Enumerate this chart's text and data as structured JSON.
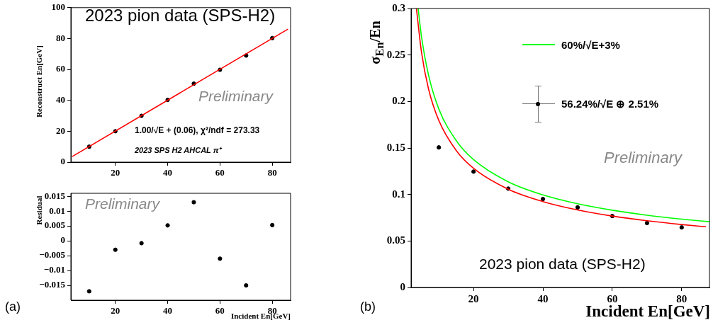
{
  "chart_data": [
    {
      "type": "scatter",
      "ylabel": "Reconstruct En[GeV]",
      "xlim": [
        3,
        87
      ],
      "xticks": [
        20,
        40,
        60,
        80
      ],
      "ylim": [
        0,
        100
      ],
      "yticks": [
        0,
        20,
        40,
        60,
        80,
        100
      ],
      "grid": false,
      "annotations": [
        "2023 pion data (SPS-H2)",
        "Preliminary",
        "1.00/√E + (0.06), χ²/ndf = 273.33",
        "2023 SPS H2 AHCAL π⁺"
      ],
      "series": [
        {
          "type": "line",
          "color": "#ff0000",
          "x": [
            3.5,
            86
          ],
          "values": [
            3.6,
            86.1
          ]
        },
        {
          "marker": "circle",
          "color": "#000000",
          "x": [
            10,
            20,
            30,
            40,
            50,
            60,
            70,
            80
          ],
          "values": [
            10,
            20,
            30,
            40.3,
            50.8,
            59.8,
            69,
            80.3
          ]
        }
      ]
    },
    {
      "type": "scatter",
      "ylabel": "Residual",
      "xlabel": "Incident En[GeV]",
      "xlim": [
        3,
        87
      ],
      "xticks": [
        20,
        40,
        60,
        80
      ],
      "ylim": [
        -0.02,
        0.016
      ],
      "yticks": [
        {
          "value": -0.015,
          "label": "−0.015"
        },
        {
          "value": -0.01,
          "label": "−0.01"
        },
        {
          "value": -0.005,
          "label": "−0.005"
        },
        0,
        0.005,
        0.01,
        0.015
      ],
      "grid": false,
      "marker": "circle",
      "annotations": [
        "Preliminary",
        "(a)"
      ],
      "series": [
        {
          "color": "#000000",
          "x": [
            10,
            20,
            30,
            40,
            50,
            60,
            70,
            80
          ],
          "values": [
            -0.017,
            -0.003,
            -0.0008,
            0.0052,
            0.013,
            -0.006,
            -0.015,
            0.0053
          ]
        }
      ]
    },
    {
      "type": "scatter",
      "ylabel": "σ$_{En}$/En",
      "xlabel": "Incident En[GeV]",
      "xlim": [
        2,
        88
      ],
      "xticks": [
        20,
        40,
        60,
        80
      ],
      "ylim": [
        0,
        0.3
      ],
      "yticks": [
        0,
        0.05,
        0.1,
        0.15,
        0.2,
        0.25,
        0.3
      ],
      "grid": false,
      "legend": "top right",
      "annotations": [
        "Preliminary",
        "2023 pion data (SPS-H2)",
        "(b)"
      ],
      "series": [
        {
          "type": "line",
          "name": "60%/√E+3%",
          "color": "#00ff00",
          "x": [
            4.04,
            5,
            7,
            10,
            15,
            20,
            30,
            40,
            50,
            60,
            70,
            80,
            88
          ],
          "values": [
            0.3,
            0.27,
            0.229,
            0.192,
            0.158,
            0.1375,
            0.1136,
            0.0995,
            0.09,
            0.0831,
            0.0777,
            0.0735,
            0.0707
          ]
        },
        {
          "type": "line",
          "color": "#ff0000",
          "x": [
            3.54,
            5,
            7,
            10,
            15,
            20,
            30,
            40,
            50,
            60,
            70,
            80,
            87
          ],
          "values": [
            0.3,
            0.253,
            0.214,
            0.1796,
            0.1474,
            0.1282,
            0.1057,
            0.0924,
            0.0834,
            0.0768,
            0.0718,
            0.0677,
            0.0653
          ]
        },
        {
          "marker": "circle",
          "name": "56.24%/√E ⊕ 2.51%",
          "color": "#000000",
          "x": [
            10,
            20,
            30,
            40,
            50,
            60,
            70,
            80
          ],
          "values": [
            0.1506,
            0.1246,
            0.1063,
            0.0951,
            0.0861,
            0.0768,
            0.0693,
            0.0646
          ],
          "errors": [
            0.002,
            null,
            null,
            null,
            null,
            null,
            null,
            null
          ]
        }
      ]
    }
  ]
}
